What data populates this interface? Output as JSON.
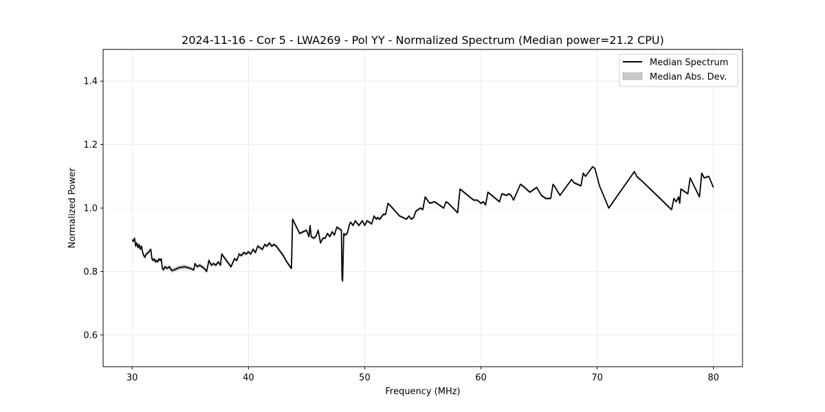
{
  "chart_data": {
    "type": "line",
    "title": "2024-11-16 - Cor 5 - LWA269 - Pol YY - Normalized Spectrum (Median power=21.2 CPU)",
    "xlabel": "Frequency (MHz)",
    "ylabel": "Normalized Power",
    "xlim": [
      27.5,
      82.5
    ],
    "ylim": [
      0.5,
      1.5
    ],
    "xticks": [
      30,
      40,
      50,
      60,
      70,
      80
    ],
    "xtick_labels": [
      "30",
      "40",
      "50",
      "60",
      "70",
      "80"
    ],
    "yticks": [
      0.6,
      0.8,
      1.0,
      1.2,
      1.4
    ],
    "ytick_labels": [
      "0.6",
      "0.8",
      "1.0",
      "1.2",
      "1.4"
    ],
    "grid": true,
    "legend_position": "upper-right",
    "legend": [
      "Median Spectrum",
      "Median Abs. Dev."
    ],
    "colors": {
      "line": "#000000",
      "band": "#c8c8c8",
      "grid": "#e6e6e6"
    },
    "series": [
      {
        "name": "Median Spectrum",
        "x": [
          30.0,
          30.1,
          30.2,
          30.3,
          30.4,
          30.5,
          30.6,
          30.7,
          30.8,
          30.9,
          31.0,
          31.1,
          31.2,
          31.4,
          31.6,
          31.7,
          31.8,
          31.9,
          32.0,
          32.1,
          32.2,
          32.3,
          32.4,
          32.5,
          32.6,
          32.7,
          32.8,
          33.0,
          33.2,
          33.4,
          33.6,
          33.8,
          34.0,
          34.5,
          35.0,
          35.3,
          35.4,
          35.6,
          35.8,
          36.0,
          36.2,
          36.3,
          36.4,
          36.6,
          36.8,
          37.0,
          37.2,
          37.4,
          37.6,
          37.7,
          38.0,
          38.5,
          38.8,
          39.0,
          39.2,
          39.4,
          39.6,
          39.8,
          40.0,
          40.2,
          40.4,
          40.6,
          40.8,
          41.0,
          41.2,
          41.4,
          41.6,
          41.8,
          42.0,
          42.2,
          42.4,
          42.6,
          42.8,
          43.0,
          43.3,
          43.7,
          43.8,
          44.4,
          45.0,
          45.1,
          45.2,
          45.3,
          45.4,
          45.6,
          45.8,
          46.0,
          46.2,
          46.4,
          46.6,
          46.8,
          47.0,
          47.2,
          47.4,
          47.6,
          47.8,
          48.0,
          48.05,
          48.1,
          48.2,
          48.3,
          48.5,
          48.7,
          48.8,
          49.0,
          49.2,
          49.5,
          49.6,
          49.8,
          50.0,
          50.2,
          50.4,
          50.6,
          50.8,
          51.0,
          51.1,
          51.3,
          51.6,
          51.8,
          52.0,
          52.4,
          53.0,
          53.6,
          53.8,
          54.0,
          54.2,
          54.4,
          54.6,
          54.8,
          55.0,
          55.2,
          55.6,
          56.0,
          56.4,
          56.8,
          57.0,
          57.2,
          57.6,
          58.0,
          58.2,
          59.2,
          59.4,
          59.7,
          60.0,
          60.2,
          60.4,
          60.6,
          61.6,
          61.8,
          62.2,
          62.4,
          62.6,
          62.8,
          63.4,
          63.6,
          64.2,
          64.6,
          64.8,
          65.2,
          65.6,
          66.0,
          66.2,
          66.4,
          66.8,
          67.8,
          68.0,
          68.6,
          68.8,
          69.0,
          69.4,
          69.6,
          69.8,
          70.2,
          71.0,
          73.2,
          73.4,
          74.0,
          76.4,
          76.6,
          76.8,
          77.0,
          77.1,
          77.2,
          77.6,
          77.8,
          78.0,
          78.8,
          79.0,
          79.2,
          79.6,
          80.0
        ],
        "values": [
          0.9,
          0.895,
          0.905,
          0.88,
          0.89,
          0.875,
          0.885,
          0.87,
          0.88,
          0.86,
          0.85,
          0.845,
          0.855,
          0.86,
          0.87,
          0.84,
          0.835,
          0.84,
          0.83,
          0.835,
          0.83,
          0.84,
          0.835,
          0.84,
          0.81,
          0.805,
          0.815,
          0.81,
          0.815,
          0.803,
          0.805,
          0.808,
          0.812,
          0.815,
          0.81,
          0.805,
          0.825,
          0.815,
          0.82,
          0.815,
          0.81,
          0.805,
          0.8,
          0.835,
          0.82,
          0.825,
          0.82,
          0.83,
          0.82,
          0.855,
          0.84,
          0.815,
          0.84,
          0.835,
          0.855,
          0.85,
          0.86,
          0.855,
          0.862,
          0.855,
          0.87,
          0.86,
          0.88,
          0.875,
          0.87,
          0.885,
          0.88,
          0.89,
          0.88,
          0.885,
          0.88,
          0.87,
          0.86,
          0.85,
          0.83,
          0.81,
          0.965,
          0.92,
          0.93,
          0.92,
          0.91,
          0.945,
          0.91,
          0.905,
          0.91,
          0.93,
          0.89,
          0.905,
          0.905,
          0.92,
          0.91,
          0.925,
          0.915,
          0.94,
          0.935,
          0.93,
          0.78,
          0.77,
          0.92,
          0.915,
          0.92,
          0.95,
          0.955,
          0.945,
          0.96,
          0.945,
          0.95,
          0.96,
          0.945,
          0.96,
          0.955,
          0.95,
          0.975,
          0.965,
          0.97,
          0.965,
          0.98,
          0.98,
          1.015,
          1.0,
          0.975,
          0.965,
          0.975,
          0.965,
          0.97,
          0.99,
          0.995,
          1.0,
          0.995,
          1.035,
          1.015,
          1.02,
          1.01,
          1.0,
          1.02,
          1.015,
          1.0,
          0.985,
          1.06,
          1.03,
          1.025,
          1.025,
          1.015,
          1.02,
          1.01,
          1.05,
          1.02,
          1.045,
          1.04,
          1.045,
          1.04,
          1.025,
          1.075,
          1.07,
          1.05,
          1.06,
          1.065,
          1.04,
          1.03,
          1.03,
          1.075,
          1.065,
          1.04,
          1.09,
          1.08,
          1.07,
          1.11,
          1.1,
          1.12,
          1.13,
          1.125,
          1.07,
          1.0,
          1.115,
          1.1,
          1.08,
          0.995,
          1.03,
          1.02,
          1.035,
          1.015,
          1.06,
          1.05,
          1.045,
          1.095,
          1.035,
          1.11,
          1.095,
          1.1,
          1.065
        ]
      },
      {
        "name": "Median Abs. Dev.",
        "band_width": [
          0.006,
          0.006,
          0.006,
          0.006,
          0.006,
          0.006,
          0.006,
          0.006,
          0.006,
          0.006,
          0.006,
          0.006,
          0.006,
          0.006,
          0.006,
          0.006,
          0.006,
          0.006,
          0.006,
          0.006,
          0.006,
          0.006,
          0.006,
          0.006,
          0.006,
          0.006,
          0.006,
          0.007,
          0.007,
          0.007,
          0.007,
          0.007,
          0.007,
          0.007,
          0.006,
          0.006,
          0.006,
          0.006,
          0.006,
          0.006,
          0.006,
          0.006,
          0.006,
          0.006,
          0.006,
          0.006,
          0.006,
          0.006,
          0.006,
          0.006,
          0.006,
          0.006,
          0.006,
          0.006,
          0.006,
          0.006,
          0.006,
          0.006,
          0.006,
          0.006,
          0.006,
          0.006,
          0.006,
          0.006,
          0.006,
          0.006,
          0.006,
          0.006,
          0.006,
          0.006,
          0.006,
          0.006,
          0.006,
          0.006,
          0.006,
          0.006,
          0.005,
          0.005,
          0.005,
          0.005,
          0.005,
          0.005,
          0.005,
          0.005,
          0.005,
          0.005,
          0.005,
          0.005,
          0.005,
          0.005,
          0.005,
          0.005,
          0.005,
          0.005,
          0.005,
          0.005,
          0.01,
          0.01,
          0.005,
          0.005,
          0.005,
          0.005,
          0.005,
          0.005,
          0.005,
          0.005,
          0.005,
          0.005,
          0.005,
          0.005,
          0.005,
          0.005,
          0.005,
          0.005,
          0.005,
          0.005,
          0.005,
          0.005,
          0.004,
          0.004,
          0.004,
          0.004,
          0.004,
          0.004,
          0.004,
          0.004,
          0.004,
          0.004,
          0.004,
          0.004,
          0.004,
          0.004,
          0.004,
          0.004,
          0.004,
          0.004,
          0.004,
          0.004,
          0.004,
          0.004,
          0.004,
          0.004,
          0.004,
          0.004,
          0.004,
          0.004,
          0.004,
          0.004,
          0.004,
          0.004,
          0.004,
          0.004,
          0.004,
          0.004,
          0.004,
          0.004,
          0.004,
          0.004,
          0.004,
          0.004,
          0.004,
          0.004,
          0.004,
          0.004,
          0.004,
          0.004,
          0.004,
          0.004,
          0.004,
          0.004,
          0.004,
          0.004,
          0.004,
          0.004,
          0.004,
          0.004,
          0.004,
          0.004,
          0.004,
          0.004,
          0.004,
          0.004,
          0.004,
          0.004,
          0.004,
          0.004,
          0.004,
          0.004,
          0.004,
          0.004,
          0.004,
          0.004,
          0.004,
          0.004
        ]
      }
    ]
  }
}
